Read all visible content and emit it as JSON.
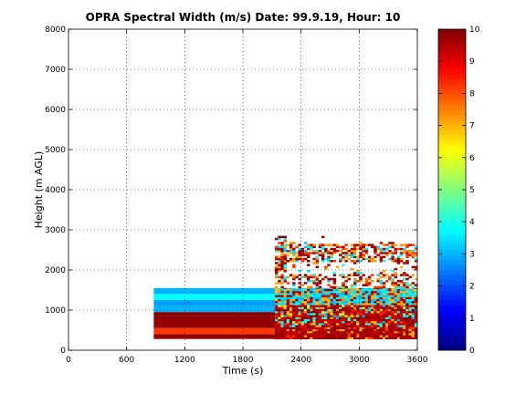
{
  "chart_data": {
    "type": "heatmap",
    "title": "OPRA Spectral Width (m/s)  Date: 99.9.19, Hour: 10",
    "xlabel": "Time (s)",
    "ylabel": "Height (m AGL)",
    "xlim": [
      0,
      3600
    ],
    "ylim": [
      0,
      8000
    ],
    "xticks": [
      0,
      600,
      1200,
      1800,
      2400,
      3000,
      3600
    ],
    "yticks": [
      0,
      1000,
      2000,
      3000,
      4000,
      5000,
      6000,
      7000,
      8000
    ],
    "grid": true,
    "colorbar": {
      "min": 0,
      "max": 10,
      "ticks": [
        0,
        1,
        2,
        3,
        4,
        5,
        6,
        7,
        8,
        9,
        10
      ],
      "colormap": "jet"
    },
    "bands": [
      {
        "x": [
          880,
          2130
        ],
        "y": [
          1400,
          1550
        ],
        "value": 3.0
      },
      {
        "x": [
          880,
          2130
        ],
        "y": [
          1250,
          1400
        ],
        "value": 3.8
      },
      {
        "x": [
          880,
          2130
        ],
        "y": [
          1100,
          1250
        ],
        "value": 2.8
      },
      {
        "x": [
          880,
          2130
        ],
        "y": [
          950,
          1100
        ],
        "value": 3.0
      },
      {
        "x": [
          880,
          2130
        ],
        "y": [
          850,
          950
        ],
        "value": 10.0
      },
      {
        "x": [
          880,
          2130
        ],
        "y": [
          550,
          850
        ],
        "value": 9.8
      },
      {
        "x": [
          880,
          2130
        ],
        "y": [
          400,
          550
        ],
        "value": 8.2
      },
      {
        "x": [
          880,
          2130
        ],
        "y": [
          280,
          400
        ],
        "value": 9.8
      }
    ],
    "noisy_regions": [
      {
        "x": [
          2130,
          3600
        ],
        "y": [
          280,
          1550
        ],
        "typical": 8.5
      },
      {
        "x": [
          2130,
          3600
        ],
        "y": [
          1550,
          2850
        ],
        "typical": 8.0
      }
    ]
  }
}
